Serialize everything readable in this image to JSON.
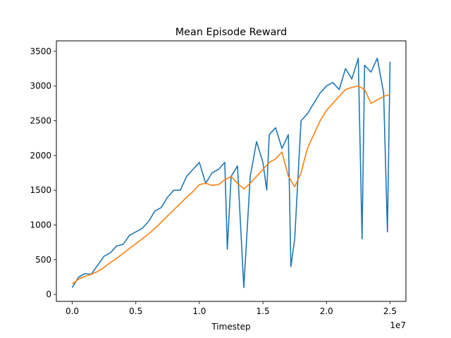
{
  "chart_data": {
    "type": "line",
    "title": "Mean Episode Reward",
    "xlabel": "Timestep",
    "ylabel": "",
    "x_offset_label": "1e7",
    "xlim": [
      -0.125,
      2.625
    ],
    "ylim": [
      -100,
      3650
    ],
    "x_ticks": [
      0.0,
      0.5,
      1.0,
      1.5,
      2.0,
      2.5
    ],
    "x_tick_labels": [
      "0.0",
      "0.5",
      "1.0",
      "1.5",
      "2.0",
      "2.5"
    ],
    "y_ticks": [
      0,
      500,
      1000,
      1500,
      2000,
      2500,
      3000,
      3500
    ],
    "y_tick_labels": [
      "0",
      "500",
      "1000",
      "1500",
      "2000",
      "2500",
      "3000",
      "3500"
    ],
    "grid": false,
    "colors": {
      "raw": "#1f77b4",
      "smoothed": "#ff7f0e"
    },
    "series": [
      {
        "key": "raw",
        "x": [
          0.0,
          0.05,
          0.1,
          0.15,
          0.2,
          0.25,
          0.3,
          0.35,
          0.4,
          0.45,
          0.5,
          0.55,
          0.6,
          0.65,
          0.7,
          0.75,
          0.8,
          0.85,
          0.9,
          0.95,
          1.0,
          1.05,
          1.1,
          1.15,
          1.2,
          1.22,
          1.25,
          1.3,
          1.35,
          1.4,
          1.45,
          1.5,
          1.53,
          1.55,
          1.6,
          1.65,
          1.7,
          1.72,
          1.75,
          1.8,
          1.85,
          1.9,
          1.95,
          2.0,
          2.05,
          2.1,
          2.15,
          2.2,
          2.25,
          2.28,
          2.3,
          2.35,
          2.4,
          2.45,
          2.48,
          2.5
        ],
        "y": [
          100,
          250,
          300,
          290,
          420,
          550,
          600,
          700,
          720,
          850,
          900,
          950,
          1050,
          1200,
          1250,
          1400,
          1500,
          1500,
          1700,
          1800,
          1900,
          1600,
          1750,
          1800,
          1900,
          650,
          1700,
          1850,
          100,
          1700,
          2200,
          1900,
          1500,
          2300,
          2400,
          2100,
          2300,
          400,
          800,
          2500,
          2600,
          2750,
          2900,
          3000,
          3050,
          2950,
          3250,
          3100,
          3400,
          800,
          3300,
          3200,
          3400,
          2900,
          900,
          3350
        ]
      },
      {
        "key": "smoothed",
        "x": [
          0.0,
          0.05,
          0.1,
          0.15,
          0.2,
          0.25,
          0.3,
          0.35,
          0.4,
          0.45,
          0.5,
          0.55,
          0.6,
          0.65,
          0.7,
          0.75,
          0.8,
          0.85,
          0.9,
          0.95,
          1.0,
          1.05,
          1.1,
          1.15,
          1.2,
          1.25,
          1.3,
          1.35,
          1.4,
          1.45,
          1.5,
          1.55,
          1.6,
          1.65,
          1.7,
          1.75,
          1.8,
          1.85,
          1.9,
          1.95,
          2.0,
          2.05,
          2.1,
          2.15,
          2.2,
          2.25,
          2.3,
          2.35,
          2.4,
          2.45,
          2.5
        ],
        "y": [
          150,
          220,
          260,
          290,
          330,
          390,
          460,
          520,
          590,
          660,
          730,
          800,
          870,
          950,
          1040,
          1130,
          1220,
          1310,
          1400,
          1480,
          1580,
          1600,
          1570,
          1580,
          1650,
          1700,
          1600,
          1520,
          1600,
          1700,
          1800,
          1900,
          1950,
          2050,
          1700,
          1550,
          1750,
          2100,
          2300,
          2500,
          2650,
          2750,
          2850,
          2950,
          2980,
          3000,
          2950,
          2750,
          2800,
          2850,
          2880
        ]
      }
    ]
  }
}
